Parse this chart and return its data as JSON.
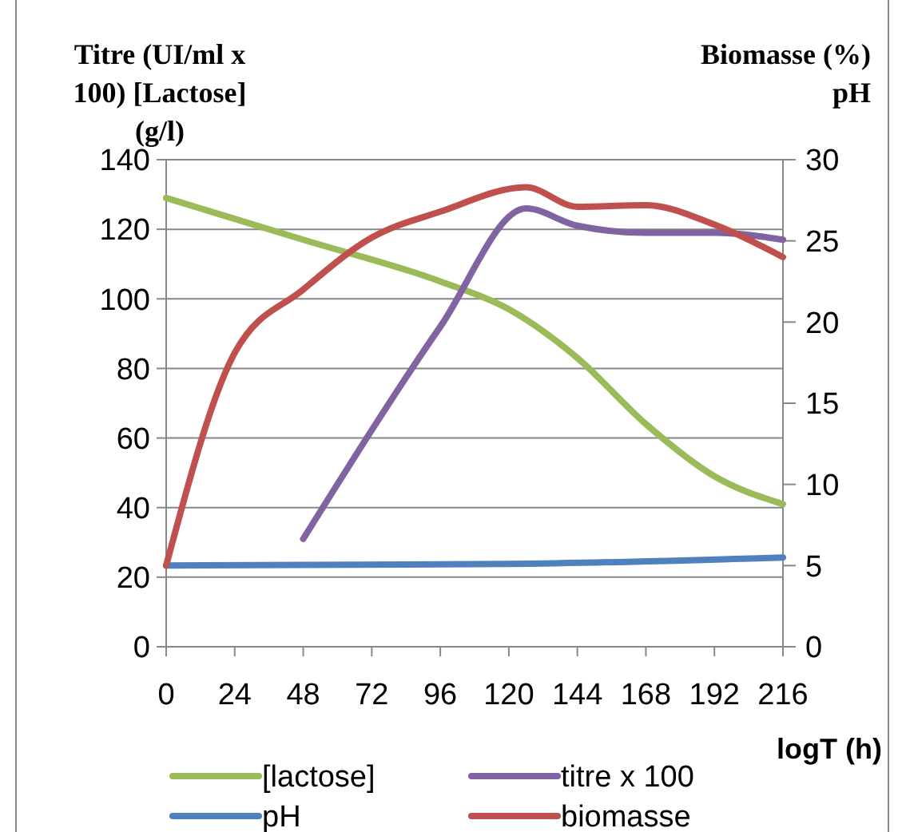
{
  "chart_data": {
    "type": "line",
    "xlabel": "logT (h)",
    "ylabel": "Titre (UI/ml x 100) [Lactose] (g/l)",
    "y2label": "Biomasse (%) pH",
    "xlim": [
      0,
      216
    ],
    "xticks": [
      0,
      24,
      48,
      72,
      96,
      120,
      144,
      168,
      192,
      216
    ],
    "ylim": [
      0,
      140
    ],
    "yticks": [
      0,
      20,
      40,
      60,
      80,
      100,
      120,
      140
    ],
    "y2lim": [
      0,
      30
    ],
    "y2ticks": [
      0,
      5,
      10,
      15,
      20,
      25,
      30
    ],
    "grid": "y",
    "legend": "bottom",
    "line_style": "solid",
    "marker": "none",
    "series": [
      {
        "name": "[lactose]",
        "color": "#9bbb59",
        "x": [
          0,
          48,
          96,
          120,
          144,
          168,
          192,
          216
        ],
        "values": [
          129,
          117,
          105,
          97,
          83,
          64,
          49,
          41
        ]
      },
      {
        "name": "titre x 100",
        "color": "#8064a2",
        "x": [
          48,
          96,
          126,
          144,
          168,
          192,
          216
        ],
        "values": [
          31,
          92,
          126,
          121,
          119,
          119,
          117
        ]
      },
      {
        "name": "pH",
        "color": "#4f81bd",
        "axis": "y2",
        "x": [
          0,
          120,
          216
        ],
        "values": [
          5.0,
          5.1,
          5.5
        ]
      },
      {
        "name": "biomasse",
        "color": "#c0504d",
        "axis": "y2",
        "x": [
          0,
          24,
          48,
          72,
          96,
          126,
          144,
          168,
          192,
          216
        ],
        "values": [
          5.0,
          18.1,
          22.0,
          25.2,
          26.8,
          28.3,
          27.1,
          27.2,
          26.0,
          24.0
        ]
      }
    ]
  }
}
